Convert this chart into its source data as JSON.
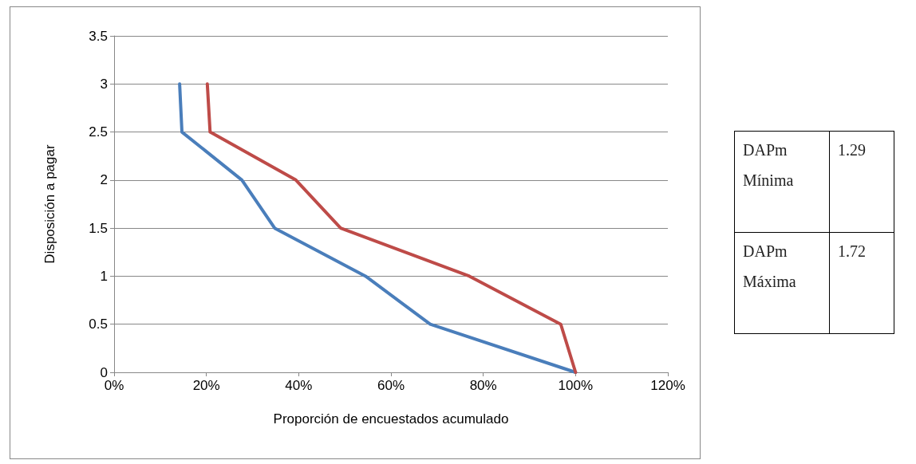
{
  "chart_data": {
    "type": "line",
    "xlabel": "Proporción de encuestados acumulado",
    "ylabel": "Disposición a pagar",
    "series": [
      {
        "color": "#4a7ebb",
        "x": [
          14.2,
          14.7,
          27.7,
          34.8,
          54.5,
          68.5,
          100
        ],
        "values": [
          3,
          2.5,
          2,
          1.5,
          1,
          0.5,
          0
        ]
      },
      {
        "color": "#be4b48",
        "x": [
          20.2,
          20.8,
          39.4,
          49.1,
          77,
          96.8,
          100
        ],
        "values": [
          3,
          2.5,
          2,
          1.5,
          1,
          0.5,
          0
        ]
      }
    ],
    "xlim": [
      0,
      120
    ],
    "xticks": [
      {
        "value": 0,
        "label": "0%"
      },
      {
        "value": 20,
        "label": "20%"
      },
      {
        "value": 40,
        "label": "40%"
      },
      {
        "value": 60,
        "label": "60%"
      },
      {
        "value": 80,
        "label": "80%"
      },
      {
        "value": 100,
        "label": "100%"
      },
      {
        "value": 120,
        "label": "120%"
      }
    ],
    "ylim": [
      0,
      3.5
    ],
    "yticks": [
      0,
      0.5,
      1,
      1.5,
      2,
      2.5,
      3,
      3.5
    ],
    "grid": "y",
    "marker": "none",
    "line_style": "solid",
    "annotations": [
      "DAPm Mínima",
      "1.29",
      "DAPm Máxima",
      "1.72"
    ]
  }
}
